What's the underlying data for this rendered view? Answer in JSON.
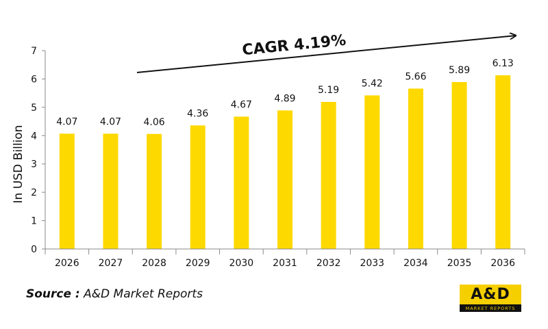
{
  "chart_data": {
    "type": "bar",
    "categories": [
      "2026",
      "2027",
      "2028",
      "2029",
      "2030",
      "2031",
      "2032",
      "2033",
      "2034",
      "2035",
      "2036"
    ],
    "values": [
      4.07,
      4.07,
      4.06,
      4.36,
      4.67,
      4.89,
      5.19,
      5.42,
      5.66,
      5.89,
      6.13
    ],
    "data_labels": [
      "4.07",
      "4.07",
      "4.06",
      "4.36",
      "4.67",
      "4.89",
      "5.19",
      "5.42",
      "5.66",
      "5.89",
      "6.13"
    ],
    "ylabel": "In USD Billion",
    "ylim": [
      0,
      7
    ],
    "yticks": [
      0,
      1,
      2,
      3,
      4,
      5,
      6,
      7
    ],
    "grid": false,
    "legend": "none",
    "annotation": "CAGR 4.19%",
    "bar_color": "#fed900"
  },
  "source": {
    "prefix": "Source :",
    "text": "A&D Market Reports"
  },
  "logo": {
    "title": "A&D",
    "subtitle": "MARKET REPORTS",
    "bg_color": "#f6cf00"
  }
}
